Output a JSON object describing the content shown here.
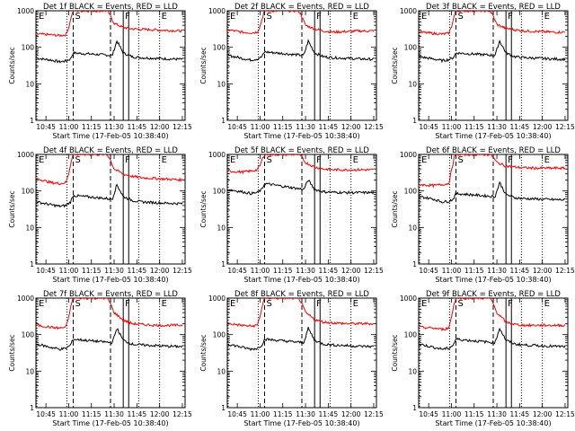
{
  "chart_data": {
    "type": "line",
    "layout": "3x3 grid of panels",
    "x_start_label": "Start Time (17-Feb-05 10:38:40)",
    "xlim": [
      10.64,
      12.28
    ],
    "ylim": [
      1,
      1000
    ],
    "yscale": "log",
    "ylabel": "Counts/sec",
    "x_tick_values": [
      10.75,
      11.0,
      11.25,
      11.5,
      11.75,
      12.0,
      12.25
    ],
    "x_tick_labels": [
      "10:45",
      "11:00",
      "11:15",
      "11:30",
      "11:45",
      "12:00",
      "12:15"
    ],
    "y_tick_values": [
      1,
      10,
      100,
      1000
    ],
    "y_tick_labels": [
      "1",
      "10",
      "100",
      "1000"
    ],
    "markers": [
      {
        "label": "E",
        "x": 10.65,
        "style": "dotted"
      },
      {
        "label": "",
        "x": 10.98,
        "style": "dotted"
      },
      {
        "label": "S",
        "x": 11.05,
        "style": "dashed"
      },
      {
        "label": "",
        "x": 11.46,
        "style": "dashed"
      },
      {
        "label": "F",
        "x": 11.6,
        "style": "solid"
      },
      {
        "label": "",
        "x": 11.66,
        "style": "solid"
      },
      {
        "label": "",
        "x": 11.77,
        "style": "dotted"
      },
      {
        "label": "E",
        "x": 12.0,
        "style": "dotted"
      }
    ],
    "series_legend": "BLACK = Events, RED = LLD",
    "panels": [
      {
        "title": "Det 1f BLACK = Events, RED = LLD",
        "series": [
          {
            "name": "Events",
            "color": "#000000",
            "x": [
              10.65,
              10.8,
              10.9,
              10.97,
              11.02,
              11.05,
              11.48,
              11.53,
              11.6,
              11.7,
              11.8,
              11.95,
              12.1,
              12.25
            ],
            "values": [
              50,
              45,
              40,
              42,
              48,
              70,
              60,
              150,
              70,
              55,
              52,
              50,
              48,
              47
            ]
          },
          {
            "name": "LLD",
            "color": "#ff0000",
            "x": [
              10.65,
              10.8,
              10.9,
              10.97,
              11.0,
              11.03,
              11.05,
              11.42,
              11.45,
              11.5,
              11.6,
              11.7,
              11.8,
              11.95,
              12.1,
              12.25
            ],
            "values": [
              230,
              220,
              210,
              220,
              350,
              700,
              1000,
              1000,
              800,
              450,
              350,
              320,
              310,
              300,
              290,
              280
            ]
          }
        ]
      },
      {
        "title": "Det 2f BLACK = Events, RED = LLD",
        "series": [
          {
            "name": "Events",
            "color": "#000000",
            "x": [
              10.65,
              10.8,
              10.9,
              10.97,
              11.02,
              11.05,
              11.48,
              11.53,
              11.6,
              11.7,
              11.8,
              11.95,
              12.1,
              12.25
            ],
            "values": [
              60,
              50,
              45,
              48,
              55,
              75,
              60,
              150,
              70,
              55,
              52,
              50,
              48,
              47
            ]
          },
          {
            "name": "LLD",
            "color": "#ff0000",
            "x": [
              10.65,
              10.8,
              10.9,
              10.97,
              11.0,
              11.03,
              11.05,
              11.42,
              11.45,
              11.5,
              11.6,
              11.7,
              11.8,
              11.95,
              12.1,
              12.25
            ],
            "values": [
              300,
              260,
              250,
              260,
              380,
              700,
              1000,
              1000,
              800,
              400,
              320,
              280,
              260,
              270,
              280,
              280
            ]
          }
        ]
      },
      {
        "title": "Det 3f BLACK = Events, RED = LLD",
        "series": [
          {
            "name": "Events",
            "color": "#000000",
            "x": [
              10.65,
              10.8,
              10.9,
              10.97,
              11.02,
              11.05,
              11.48,
              11.53,
              11.6,
              11.7,
              11.8,
              11.95,
              12.1,
              12.25
            ],
            "values": [
              55,
              48,
              43,
              46,
              52,
              70,
              60,
              150,
              70,
              55,
              52,
              50,
              48,
              47
            ]
          },
          {
            "name": "LLD",
            "color": "#ff0000",
            "x": [
              10.65,
              10.8,
              10.9,
              10.97,
              11.0,
              11.03,
              11.05,
              11.42,
              11.45,
              11.5,
              11.6,
              11.7,
              11.8,
              11.95,
              12.1,
              12.25
            ],
            "values": [
              260,
              240,
              230,
              240,
              360,
              700,
              1000,
              1000,
              800,
              420,
              330,
              300,
              280,
              270,
              260,
              260
            ]
          }
        ]
      },
      {
        "title": "Det 4f BLACK = Events, RED = LLD",
        "series": [
          {
            "name": "Events",
            "color": "#000000",
            "x": [
              10.65,
              10.8,
              10.9,
              10.97,
              11.02,
              11.05,
              11.48,
              11.53,
              11.6,
              11.7,
              11.8,
              11.95,
              12.1,
              12.25
            ],
            "values": [
              50,
              42,
              38,
              40,
              50,
              75,
              60,
              150,
              70,
              55,
              50,
              48,
              46,
              45
            ]
          },
          {
            "name": "LLD",
            "color": "#ff0000",
            "x": [
              10.65,
              10.8,
              10.9,
              10.97,
              11.0,
              11.03,
              11.05,
              11.42,
              11.45,
              11.5,
              11.6,
              11.7,
              11.8,
              11.95,
              12.1,
              12.25
            ],
            "values": [
              220,
              170,
              160,
              170,
              300,
              700,
              1000,
              1000,
              800,
              400,
              290,
              250,
              230,
              220,
              210,
              200
            ]
          }
        ]
      },
      {
        "title": "Det 5f BLACK = Events, RED = LLD",
        "series": [
          {
            "name": "Events",
            "color": "#000000",
            "x": [
              10.65,
              10.8,
              10.9,
              10.97,
              11.02,
              11.05,
              11.48,
              11.53,
              11.6,
              11.7,
              11.8,
              11.95,
              12.1,
              12.25
            ],
            "values": [
              110,
              95,
              85,
              90,
              110,
              160,
              110,
              200,
              110,
              95,
              92,
              90,
              90,
              90
            ]
          },
          {
            "name": "LLD",
            "color": "#ff0000",
            "x": [
              10.65,
              10.8,
              10.9,
              10.97,
              11.0,
              11.03,
              11.05,
              11.42,
              11.45,
              11.5,
              11.6,
              11.7,
              11.8,
              11.95,
              12.1,
              12.25
            ],
            "values": [
              350,
              330,
              350,
              380,
              500,
              800,
              1000,
              1000,
              900,
              600,
              450,
              400,
              380,
              380,
              380,
              380
            ]
          }
        ]
      },
      {
        "title": "Det 6f BLACK = Events, RED = LLD",
        "series": [
          {
            "name": "Events",
            "color": "#000000",
            "x": [
              10.65,
              10.8,
              10.9,
              10.97,
              11.02,
              11.05,
              11.48,
              11.53,
              11.6,
              11.7,
              11.8,
              11.95,
              12.1,
              12.25
            ],
            "values": [
              70,
              60,
              50,
              52,
              60,
              85,
              70,
              170,
              80,
              65,
              62,
              60,
              58,
              57
            ]
          },
          {
            "name": "LLD",
            "color": "#ff0000",
            "x": [
              10.65,
              10.8,
              10.9,
              10.97,
              11.0,
              11.03,
              11.05,
              11.42,
              11.45,
              11.5,
              11.6,
              11.7,
              11.8,
              11.95,
              12.1,
              12.25
            ],
            "values": [
              150,
              140,
              150,
              160,
              350,
              800,
              1000,
              1000,
              900,
              600,
              480,
              450,
              430,
              420,
              420,
              420
            ]
          }
        ]
      },
      {
        "title": "Det 7f BLACK = Events, RED = LLD",
        "series": [
          {
            "name": "Events",
            "color": "#000000",
            "x": [
              10.65,
              10.8,
              10.9,
              10.97,
              11.02,
              11.05,
              11.48,
              11.53,
              11.6,
              11.7,
              11.8,
              11.95,
              12.1,
              12.25
            ],
            "values": [
              55,
              45,
              40,
              42,
              52,
              75,
              60,
              150,
              70,
              55,
              52,
              50,
              48,
              47
            ]
          },
          {
            "name": "LLD",
            "color": "#ff0000",
            "x": [
              10.65,
              10.8,
              10.9,
              10.97,
              11.0,
              11.03,
              11.05,
              11.42,
              11.45,
              11.5,
              11.6,
              11.7,
              11.8,
              11.95,
              12.1,
              12.25
            ],
            "values": [
              180,
              160,
              150,
              160,
              300,
              700,
              1000,
              1000,
              800,
              400,
              250,
              200,
              190,
              180,
              180,
              180
            ]
          }
        ]
      },
      {
        "title": "Det 8f BLACK = Events, RED = LLD",
        "series": [
          {
            "name": "Events",
            "color": "#000000",
            "x": [
              10.65,
              10.8,
              10.9,
              10.97,
              11.02,
              11.05,
              11.48,
              11.53,
              11.6,
              11.7,
              11.8,
              11.95,
              12.1,
              12.25
            ],
            "values": [
              55,
              45,
              40,
              42,
              52,
              75,
              60,
              150,
              70,
              55,
              52,
              50,
              48,
              47
            ]
          },
          {
            "name": "LLD",
            "color": "#ff0000",
            "x": [
              10.65,
              10.8,
              10.9,
              10.97,
              11.0,
              11.03,
              11.05,
              11.42,
              11.45,
              11.5,
              11.6,
              11.7,
              11.8,
              11.95,
              12.1,
              12.25
            ],
            "values": [
              200,
              180,
              170,
              180,
              320,
              700,
              1000,
              1000,
              800,
              400,
              260,
              220,
              210,
              200,
              200,
              200
            ]
          }
        ]
      },
      {
        "title": "Det 9f BLACK = Events, RED = LLD",
        "series": [
          {
            "name": "Events",
            "color": "#000000",
            "x": [
              10.65,
              10.8,
              10.9,
              10.97,
              11.02,
              11.05,
              11.48,
              11.53,
              11.6,
              11.7,
              11.8,
              11.95,
              12.1,
              12.25
            ],
            "values": [
              55,
              45,
              40,
              42,
              52,
              75,
              60,
              150,
              70,
              55,
              52,
              50,
              48,
              47
            ]
          },
          {
            "name": "LLD",
            "color": "#ff0000",
            "x": [
              10.65,
              10.8,
              10.9,
              10.97,
              11.0,
              11.03,
              11.05,
              11.42,
              11.45,
              11.5,
              11.6,
              11.7,
              11.8,
              11.95,
              12.1,
              12.25
            ],
            "values": [
              160,
              150,
              140,
              150,
              300,
              700,
              1000,
              1000,
              800,
              400,
              220,
              190,
              180,
              180,
              180,
              180
            ]
          }
        ]
      }
    ]
  }
}
